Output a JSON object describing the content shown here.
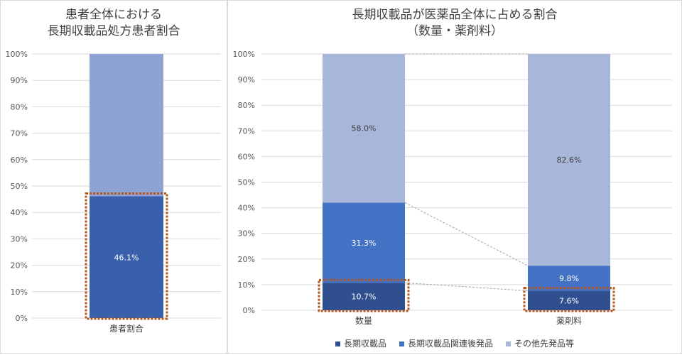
{
  "chart_data": [
    {
      "type": "bar",
      "stacked": true,
      "title": "患者全体における\n長期収載品処方患者割合",
      "categories": [
        "患者割合"
      ],
      "series": [
        {
          "name": "",
          "values": [
            46.1
          ],
          "labels": [
            "46.1%"
          ],
          "color": "#3a60ac"
        },
        {
          "name": "",
          "values": [
            53.9
          ],
          "labels": [
            ""
          ],
          "color": "#8ea3d4"
        }
      ],
      "yticks": [
        "0%",
        "10%",
        "20%",
        "30%",
        "40%",
        "50%",
        "60%",
        "70%",
        "80%",
        "90%",
        "100%"
      ],
      "ylim": [
        0,
        100
      ],
      "highlight": {
        "category_index": 0,
        "series_index": 0,
        "color": "#b5581f"
      }
    },
    {
      "type": "bar",
      "stacked": true,
      "title": "長期収載品が医薬品全体に占める割合\n（数量・薬剤料）",
      "categories": [
        "数量",
        "薬剤料"
      ],
      "series": [
        {
          "name": "長期収載品",
          "values": [
            10.7,
            7.6
          ],
          "labels": [
            "10.7%",
            "7.6%"
          ],
          "color": "#2f4f8f"
        },
        {
          "name": "長期収載品関連後発品",
          "values": [
            31.3,
            9.8
          ],
          "labels": [
            "31.3%",
            "9.8%"
          ],
          "color": "#4472c4"
        },
        {
          "name": "その他先発品等",
          "values": [
            58.0,
            82.6
          ],
          "labels": [
            "58.0%",
            "82.6%"
          ],
          "color": "#a8b6da"
        }
      ],
      "yticks": [
        "0%",
        "10%",
        "20%",
        "30%",
        "40%",
        "50%",
        "60%",
        "70%",
        "80%",
        "90%",
        "100%"
      ],
      "ylim": [
        0,
        100
      ],
      "legend_position": "bottom",
      "highlight": {
        "series_index": 0,
        "color": "#b5581f"
      }
    }
  ]
}
